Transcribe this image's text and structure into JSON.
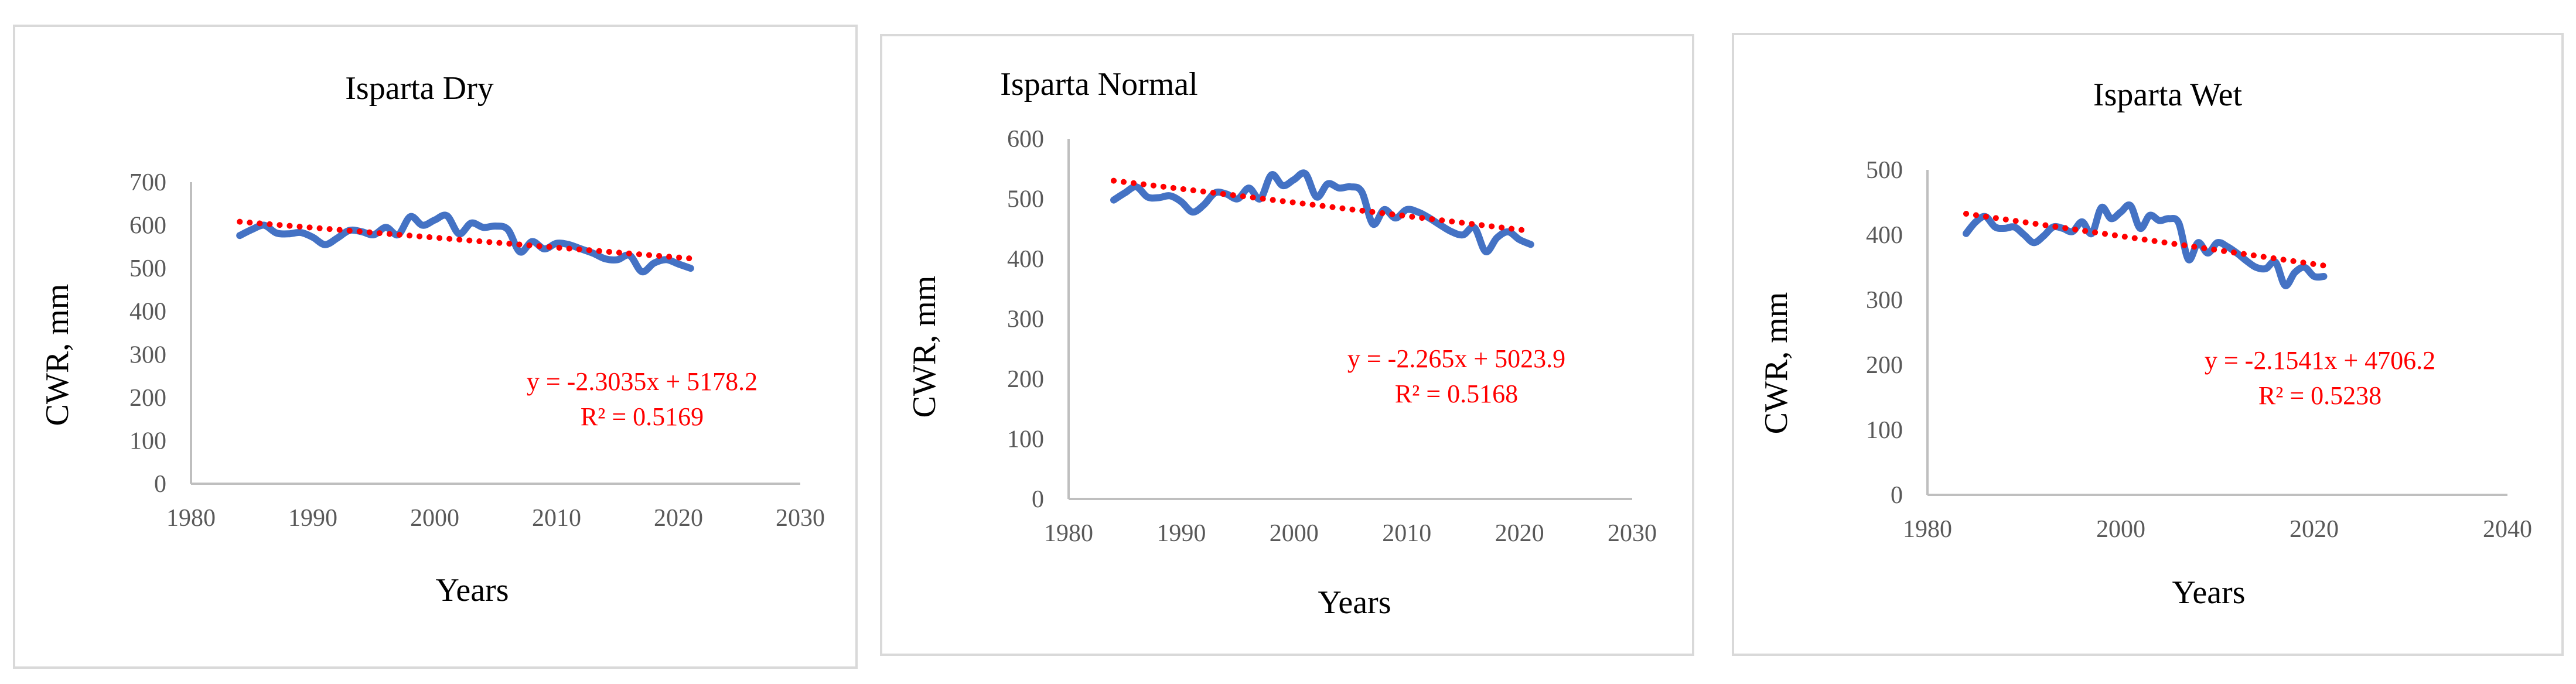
{
  "chart_data": [
    {
      "type": "line",
      "title": "Isparta Dry",
      "xlabel": "Years",
      "ylabel": "CWR, mm",
      "xlim": [
        1980,
        2030
      ],
      "ylim": [
        0,
        700
      ],
      "xticks": [
        "1980",
        "1990",
        "2000",
        "2010",
        "2020",
        "2030"
      ],
      "yticks": [
        "0",
        "100",
        "200",
        "300",
        "400",
        "500",
        "600",
        "700"
      ],
      "series": [
        {
          "name": "CWR",
          "color": "#4472c4",
          "x": [
            1984,
            1985,
            1986,
            1987,
            1988,
            1989,
            1990,
            1991,
            1992,
            1993,
            1994,
            1995,
            1996,
            1997,
            1998,
            1999,
            2000,
            2001,
            2002,
            2003,
            2004,
            2005,
            2006,
            2007,
            2008,
            2009,
            2010,
            2011,
            2012,
            2013,
            2014,
            2015,
            2016,
            2017,
            2018,
            2019,
            2020,
            2021
          ],
          "y": [
            576,
            590,
            600,
            582,
            580,
            583,
            572,
            555,
            570,
            588,
            585,
            578,
            595,
            578,
            620,
            600,
            612,
            622,
            580,
            605,
            595,
            598,
            590,
            538,
            562,
            545,
            558,
            555,
            545,
            535,
            522,
            520,
            530,
            492,
            512,
            520,
            510,
            500
          ]
        },
        {
          "name": "Linear trend",
          "color": "#ff0000",
          "trend": true,
          "slope": -2.3035,
          "intercept": 5178.2,
          "x_range": [
            1984,
            2021
          ]
        }
      ],
      "equation": "y = -2.3035x + 5178.2",
      "r2": "R² = 0.5169"
    },
    {
      "type": "line",
      "title": "Isparta Normal",
      "xlabel": "Years",
      "ylabel": "CWR, mm",
      "xlim": [
        1980,
        2030
      ],
      "ylim": [
        0,
        600
      ],
      "xticks": [
        "1980",
        "1990",
        "2000",
        "2010",
        "2020",
        "2030"
      ],
      "yticks": [
        "0",
        "100",
        "200",
        "300",
        "400",
        "500",
        "600"
      ],
      "series": [
        {
          "name": "CWR",
          "color": "#4472c4",
          "x": [
            1984,
            1985,
            1986,
            1987,
            1988,
            1989,
            1990,
            1991,
            1992,
            1993,
            1994,
            1995,
            1996,
            1997,
            1998,
            1999,
            2000,
            2001,
            2002,
            2003,
            2004,
            2005,
            2006,
            2007,
            2008,
            2009,
            2010,
            2011,
            2012,
            2013,
            2014,
            2015,
            2016,
            2017,
            2018,
            2019,
            2020,
            2021
          ],
          "y": [
            498,
            510,
            520,
            503,
            502,
            505,
            495,
            478,
            490,
            510,
            508,
            500,
            518,
            500,
            540,
            522,
            532,
            542,
            503,
            525,
            518,
            520,
            512,
            458,
            482,
            468,
            482,
            478,
            468,
            456,
            445,
            440,
            452,
            412,
            435,
            445,
            432,
            424
          ]
        },
        {
          "name": "Linear trend",
          "color": "#ff0000",
          "trend": true,
          "slope": -2.265,
          "intercept": 5023.9,
          "x_range": [
            1984,
            2021
          ]
        }
      ],
      "equation": "y = -2.265x + 5023.9",
      "r2": "R² = 0.5168"
    },
    {
      "type": "line",
      "title": "Isparta Wet",
      "xlabel": "Years",
      "ylabel": "CWR, mm",
      "xlim": [
        1980,
        2040
      ],
      "ylim": [
        0,
        500
      ],
      "xticks": [
        "1980",
        "2000",
        "2020",
        "2040"
      ],
      "yticks": [
        "0",
        "100",
        "200",
        "300",
        "400",
        "500"
      ],
      "series": [
        {
          "name": "CWR",
          "color": "#4472c4",
          "x": [
            1984,
            1985,
            1986,
            1987,
            1988,
            1989,
            1990,
            1991,
            1992,
            1993,
            1994,
            1995,
            1996,
            1997,
            1998,
            1999,
            2000,
            2001,
            2002,
            2003,
            2004,
            2005,
            2006,
            2007,
            2008,
            2009,
            2010,
            2011,
            2012,
            2013,
            2014,
            2015,
            2016,
            2017,
            2018,
            2019,
            2020,
            2021
          ],
          "y": [
            402,
            420,
            428,
            412,
            410,
            412,
            400,
            388,
            398,
            412,
            410,
            405,
            420,
            402,
            442,
            425,
            435,
            445,
            410,
            430,
            422,
            425,
            418,
            362,
            388,
            372,
            388,
            382,
            372,
            360,
            350,
            348,
            358,
            322,
            342,
            350,
            336,
            336
          ]
        },
        {
          "name": "Linear trend",
          "color": "#ff0000",
          "trend": true,
          "slope": -2.1541,
          "intercept": 4706.2,
          "x_range": [
            1984,
            2021
          ]
        }
      ],
      "equation": "y = -2.1541x + 4706.2",
      "r2": "R² = 0.5238"
    }
  ]
}
